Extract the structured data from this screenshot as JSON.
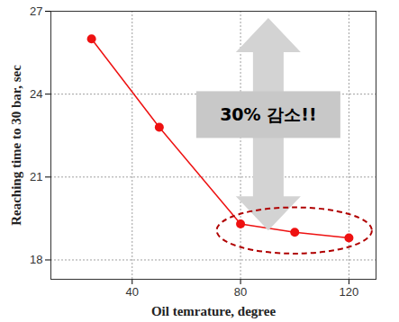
{
  "chart_data": {
    "type": "line",
    "x": [
      25,
      50,
      80,
      100,
      120
    ],
    "values": [
      26,
      22.8,
      19.3,
      19.0,
      18.8
    ],
    "color": "#ee1111",
    "marker": "circle",
    "xlabel": "Oil temrature, degree",
    "ylabel": "Reaching time to 30 bar, sec",
    "xlim": [
      10,
      130
    ],
    "ylim": [
      17.3,
      27
    ],
    "xticks": [
      40,
      80,
      120
    ],
    "yticks": [
      18,
      21,
      24,
      27
    ],
    "grid": true,
    "annotations": [
      "30% 감소!!"
    ]
  }
}
